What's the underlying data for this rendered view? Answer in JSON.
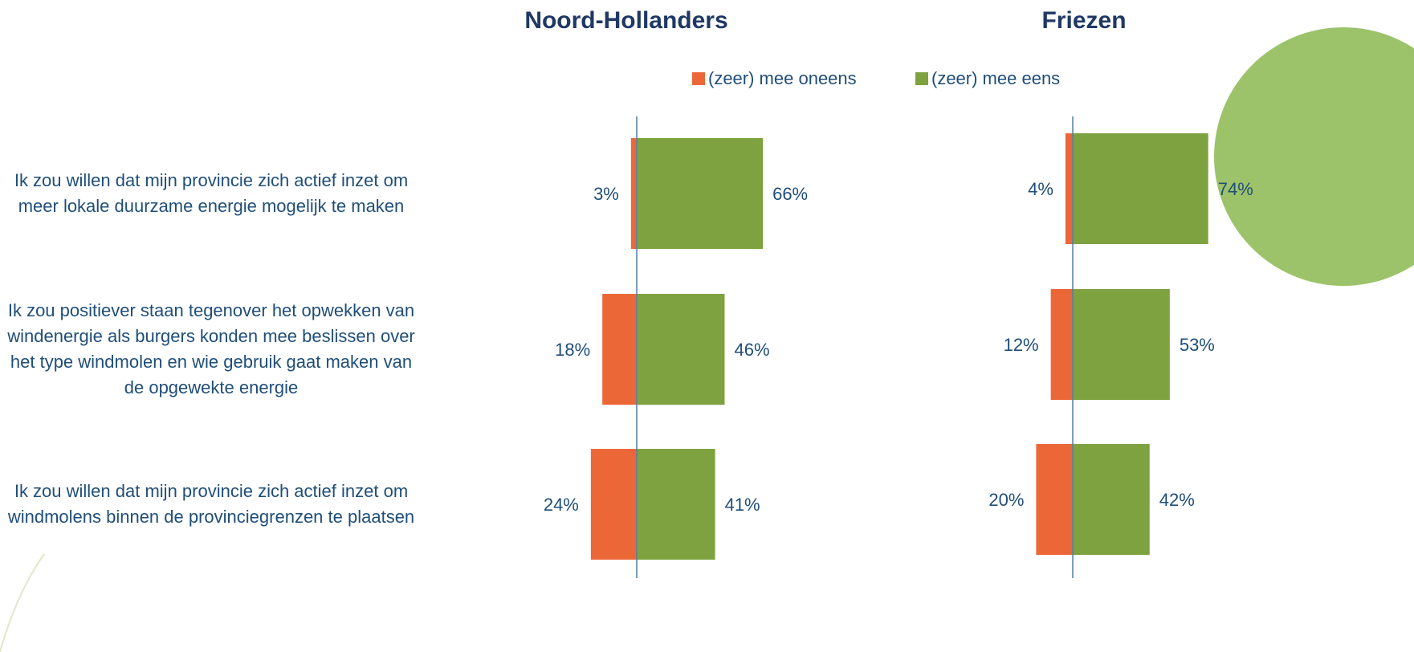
{
  "chart_data": [
    {
      "type": "bar",
      "title": "Noord-Hollanders",
      "categories": [
        "Ik zou willen dat mijn provincie zich actief inzet om meer lokale duurzame energie mogelijk te maken",
        "Ik zou positiever staan tegenover het opwekken van windenergie als burgers konden mee beslissen over het type windmolen en wie gebruik gaat maken van de opgewekte energie",
        "Ik zou willen dat mijn provincie zich actief inzet om windmolens binnen de provinciegrenzen te plaatsen"
      ],
      "series": [
        {
          "name": "(zeer) mee oneens",
          "color": "#ec6737",
          "values": [
            3,
            18,
            24
          ],
          "value_labels": [
            "3%",
            "18%",
            "24%"
          ]
        },
        {
          "name": "(zeer) mee eens",
          "color": "#7ea23f",
          "values": [
            66,
            46,
            41
          ],
          "value_labels": [
            "66%",
            "46%",
            "41%"
          ]
        }
      ]
    },
    {
      "type": "bar",
      "title": "Friezen",
      "series": [
        {
          "color": "#ec6737",
          "values": [
            4,
            12,
            20
          ],
          "value_labels": [
            "4%",
            "12%",
            "20%"
          ]
        },
        {
          "color": "#7ea23f",
          "values": [
            74,
            53,
            42
          ],
          "value_labels": [
            "74%",
            "53%",
            "42%"
          ]
        }
      ]
    }
  ]
}
